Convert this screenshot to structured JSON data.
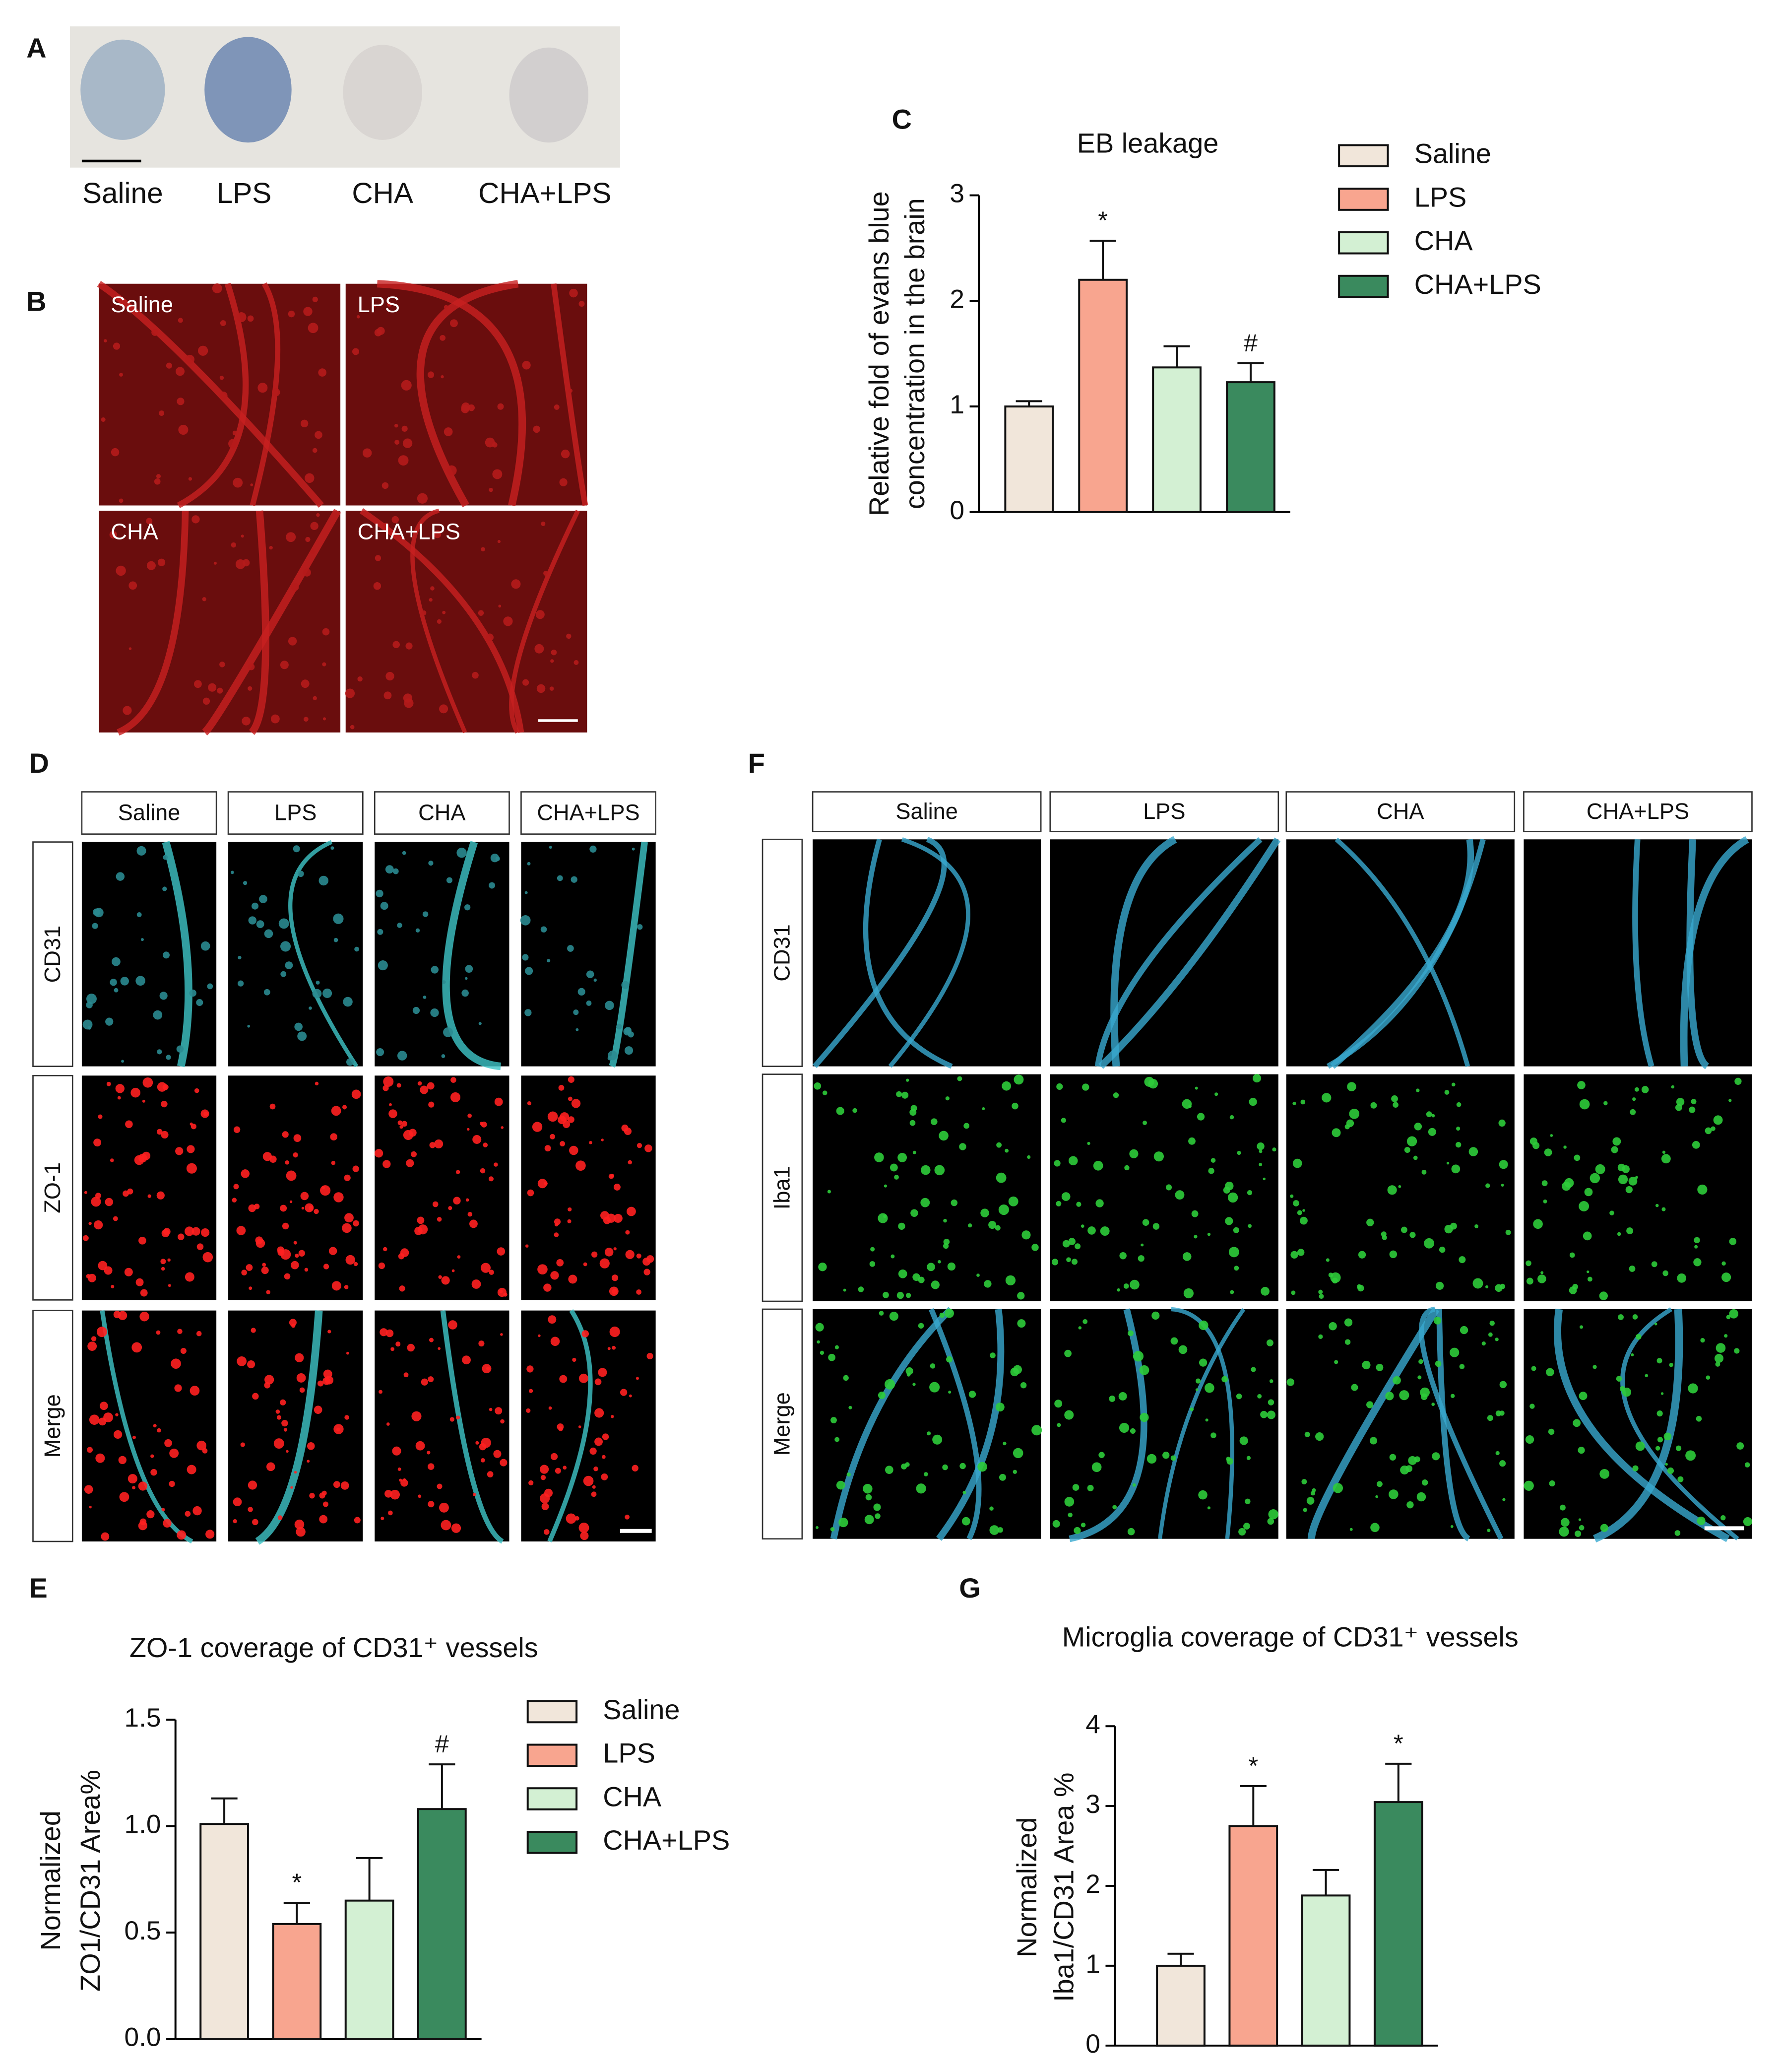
{
  "figure": {
    "panel_labels": [
      "A",
      "B",
      "C",
      "D",
      "E",
      "F",
      "G"
    ],
    "panel_a": {
      "labels": [
        "Saline",
        "LPS",
        "CHA",
        "CHA+LPS"
      ]
    },
    "panel_b": {
      "labels": [
        "Saline",
        "LPS",
        "CHA",
        "CHA+LPS"
      ]
    },
    "panel_d": {
      "columns": [
        "Saline",
        "LPS",
        "CHA",
        "CHA+LPS"
      ],
      "rows": [
        "CD31",
        "ZO-1",
        "Merge"
      ]
    },
    "panel_f": {
      "columns": [
        "Saline",
        "LPS",
        "CHA",
        "CHA+LPS"
      ],
      "rows": [
        "CD31",
        "Iba1",
        "Merge"
      ]
    }
  },
  "chart_data": [
    {
      "type": "bar",
      "title": "EB leakage",
      "ylabel": [
        "Relative fold of evans blue",
        "concentration in the brain"
      ],
      "categories": [
        "Saline",
        "LPS",
        "CHA",
        "CHA+LPS"
      ],
      "values": [
        1.0,
        2.2,
        1.37,
        1.23
      ],
      "errors": [
        0.05,
        0.37,
        0.2,
        0.18
      ],
      "markers": [
        null,
        "*",
        null,
        "#"
      ],
      "colors": [
        "#f1e6da",
        "#f8a58f",
        "#d3f0d3",
        "#3a8a5e"
      ],
      "ylim": [
        0,
        3
      ],
      "yticks": [
        0,
        1,
        2,
        3
      ],
      "legend": "right"
    },
    {
      "type": "bar",
      "title": "ZO-1 coverage of CD31⁺ vessels",
      "ylabel": [
        "Normalized",
        "ZO1/CD31 Area%"
      ],
      "categories": [
        "Saline",
        "LPS",
        "CHA",
        "CHA+LPS"
      ],
      "values": [
        1.01,
        0.54,
        0.65,
        1.08
      ],
      "errors": [
        0.12,
        0.1,
        0.2,
        0.21
      ],
      "markers": [
        null,
        "*",
        null,
        "#"
      ],
      "colors": [
        "#f1e6da",
        "#f8a58f",
        "#d3f0d3",
        "#3a8a5e"
      ],
      "ylim": [
        0,
        1.5
      ],
      "yticks": [
        {
          "value": 0,
          "label": "0.0"
        },
        0.5,
        {
          "value": 1,
          "label": "1.0"
        },
        1.5
      ],
      "legend": "right"
    },
    {
      "type": "bar",
      "title": "Microglia coverage of CD31⁺ vessels",
      "ylabel": [
        "Normalized",
        "Iba1/CD31 Area %"
      ],
      "categories": [
        "Saline",
        "LPS",
        "CHA",
        "CHA+LPS"
      ],
      "values": [
        1.0,
        2.75,
        1.88,
        3.05
      ],
      "errors": [
        0.15,
        0.5,
        0.32,
        0.48
      ],
      "markers": [
        null,
        "*",
        null,
        "*"
      ],
      "colors": [
        "#f1e6da",
        "#f8a58f",
        "#d3f0d3",
        "#3a8a5e"
      ],
      "ylim": [
        0,
        4
      ],
      "yticks": [
        0,
        1,
        2,
        3,
        4
      ]
    }
  ]
}
